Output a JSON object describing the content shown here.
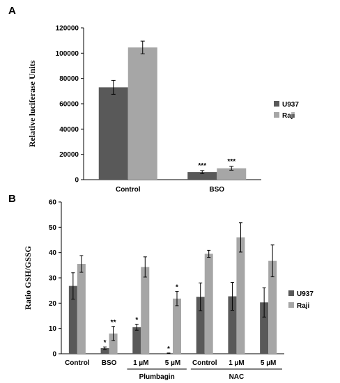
{
  "chart_data": [
    {
      "panel": "A",
      "type": "bar",
      "title": "",
      "ylabel": "Relative luciferase Units",
      "xlabel": "",
      "ylim": [
        0,
        120000
      ],
      "yticks": [
        0,
        20000,
        40000,
        60000,
        80000,
        100000,
        120000
      ],
      "categories": [
        "Control",
        "BSO"
      ],
      "series": [
        {
          "name": "U937",
          "color": "#595959",
          "values": [
            73000,
            6000
          ],
          "errors": [
            5500,
            1200
          ]
        },
        {
          "name": "Raji",
          "color": "#a6a6a6",
          "values": [
            104500,
            9000
          ],
          "errors": [
            5000,
            1500
          ]
        }
      ],
      "annotations": [
        {
          "text": "***",
          "category": "BSO",
          "series": "U937"
        },
        {
          "text": "***",
          "category": "BSO",
          "series": "Raji"
        }
      ],
      "grid": false,
      "legend": "right"
    },
    {
      "panel": "B",
      "type": "bar",
      "title": "",
      "ylabel": "Ratio GSH/GSSG",
      "xlabel": "",
      "ylim": [
        0,
        60
      ],
      "yticks": [
        0,
        10,
        20,
        30,
        40,
        50,
        60
      ],
      "categories": [
        "Control",
        "BSO",
        "1 µM",
        "5 µM",
        "Control",
        "1 µM",
        "5 µM"
      ],
      "groups": [
        {
          "label": "Plumbagin",
          "categories": [
            2,
            3
          ]
        },
        {
          "label": "NAC",
          "categories": [
            4,
            5,
            6
          ]
        }
      ],
      "series": [
        {
          "name": "U937",
          "color": "#595959",
          "values": [
            26.8,
            2.2,
            10.5,
            0.2,
            22.5,
            22.7,
            20.3
          ],
          "errors": [
            5.2,
            0.5,
            1.2,
            0.1,
            5.5,
            5.5,
            5.8
          ]
        },
        {
          "name": "Raji",
          "color": "#a6a6a6",
          "values": [
            35.5,
            8.0,
            34.3,
            21.8,
            39.5,
            46.0,
            36.7
          ],
          "errors": [
            3.3,
            2.8,
            4.0,
            2.8,
            1.4,
            5.8,
            6.3
          ]
        }
      ],
      "annotations": [
        {
          "text": "*",
          "category": 1,
          "series": "U937"
        },
        {
          "text": "**",
          "category": 1,
          "series": "Raji"
        },
        {
          "text": "*",
          "category": 2,
          "series": "U937"
        },
        {
          "text": "*",
          "category": 3,
          "series": "U937"
        },
        {
          "text": "*",
          "category": 3,
          "series": "Raji"
        }
      ],
      "grid": false,
      "legend": "right"
    }
  ]
}
